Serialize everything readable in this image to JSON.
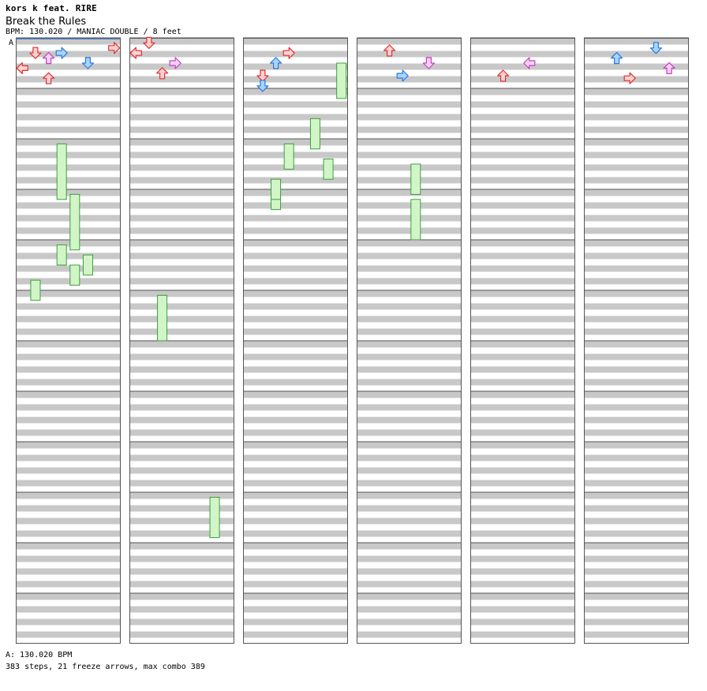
{
  "song": {
    "artist": "kors k feat. RIRE",
    "title": "Break the Rules",
    "info": "BPM: 130.020 / MANIAC DOUBLE / 8 feet"
  },
  "bpm_marker": {
    "label": "A",
    "legend": "A: 130.020 BPM"
  },
  "stats": "383 steps, 21 freeze arrows, max combo 389",
  "colors": {
    "red_fill": "#ffd2d2",
    "red_stroke": "#e03030",
    "blue_fill": "#a8d4ff",
    "blue_stroke": "#2a78d8",
    "pink_fill": "#ffd0ff",
    "pink_stroke": "#c040c0",
    "freeze_fill": "#d2f5c8",
    "freeze_stroke": "#3aa03a",
    "stripe": "#c8c8c8",
    "border": "#555555",
    "bpm_line": "#3a6aa8"
  },
  "chart_data": {
    "type": "step-chart",
    "lanes": [
      "P1-left",
      "P1-down",
      "P1-up",
      "P1-right",
      "P2-left",
      "P2-down",
      "P2-up",
      "P2-right"
    ],
    "measures": 69,
    "measures_per_column": 12,
    "columns": 6,
    "steps": [
      {
        "m": 0.2,
        "l": 7,
        "c": "red"
      },
      {
        "m": 0.3,
        "l": 3,
        "c": "blue"
      },
      {
        "m": 0.3,
        "l": 1,
        "c": "red"
      },
      {
        "m": 0.4,
        "l": 2,
        "c": "pink"
      },
      {
        "m": 0.5,
        "l": 5,
        "c": "blue"
      },
      {
        "m": 0.6,
        "l": 0,
        "c": "red"
      },
      {
        "m": 0.8,
        "l": 2,
        "c": "red"
      },
      {
        "m": 12.1,
        "l": 1,
        "c": "red"
      },
      {
        "m": 12.3,
        "l": 0,
        "c": "red"
      },
      {
        "m": 12.5,
        "l": 3,
        "c": "pink"
      },
      {
        "m": 12.7,
        "l": 2,
        "c": "red"
      },
      {
        "m": 24.3,
        "l": 3,
        "c": "red"
      },
      {
        "m": 24.5,
        "l": 2,
        "c": "blue"
      },
      {
        "m": 24.75,
        "l": 1,
        "c": "red"
      },
      {
        "m": 24.95,
        "l": 1,
        "c": "blue"
      },
      {
        "m": 36.25,
        "l": 2,
        "c": "red"
      },
      {
        "m": 36.5,
        "l": 5,
        "c": "pink"
      },
      {
        "m": 36.75,
        "l": 3,
        "c": "blue"
      },
      {
        "m": 48.5,
        "l": 4,
        "c": "pink"
      },
      {
        "m": 48.75,
        "l": 2,
        "c": "red"
      },
      {
        "m": 60.2,
        "l": 5,
        "c": "blue"
      },
      {
        "m": 60.4,
        "l": 2,
        "c": "blue"
      },
      {
        "m": 60.6,
        "l": 6,
        "c": "pink"
      },
      {
        "m": 60.8,
        "l": 3,
        "c": "red"
      }
    ],
    "freezes": [
      {
        "start": 2.1,
        "end": 3.2,
        "l": 3
      },
      {
        "start": 3.1,
        "end": 4.2,
        "l": 4
      },
      {
        "start": 4.1,
        "end": 4.5,
        "l": 3
      },
      {
        "start": 4.3,
        "end": 4.7,
        "l": 5
      },
      {
        "start": 4.5,
        "end": 4.9,
        "l": 4
      },
      {
        "start": 4.8,
        "end": 5.2,
        "l": 1
      },
      {
        "start": 17.1,
        "end": 18.0,
        "l": 2
      },
      {
        "start": 21.1,
        "end": 21.9,
        "l": 6
      },
      {
        "start": 24.5,
        "end": 25.2,
        "l": 7
      },
      {
        "start": 25.6,
        "end": 26.2,
        "l": 5
      },
      {
        "start": 26.1,
        "end": 26.6,
        "l": 3
      },
      {
        "start": 27.1,
        "end": 27.4,
        "l": 2
      },
      {
        "start": 26.4,
        "end": 26.8,
        "l": 6
      },
      {
        "start": 26.8,
        "end": 27.2,
        "l": 2
      },
      {
        "start": 38.5,
        "end": 39.1,
        "l": 4
      },
      {
        "start": 39.2,
        "end": 40.0,
        "l": 4
      }
    ]
  }
}
